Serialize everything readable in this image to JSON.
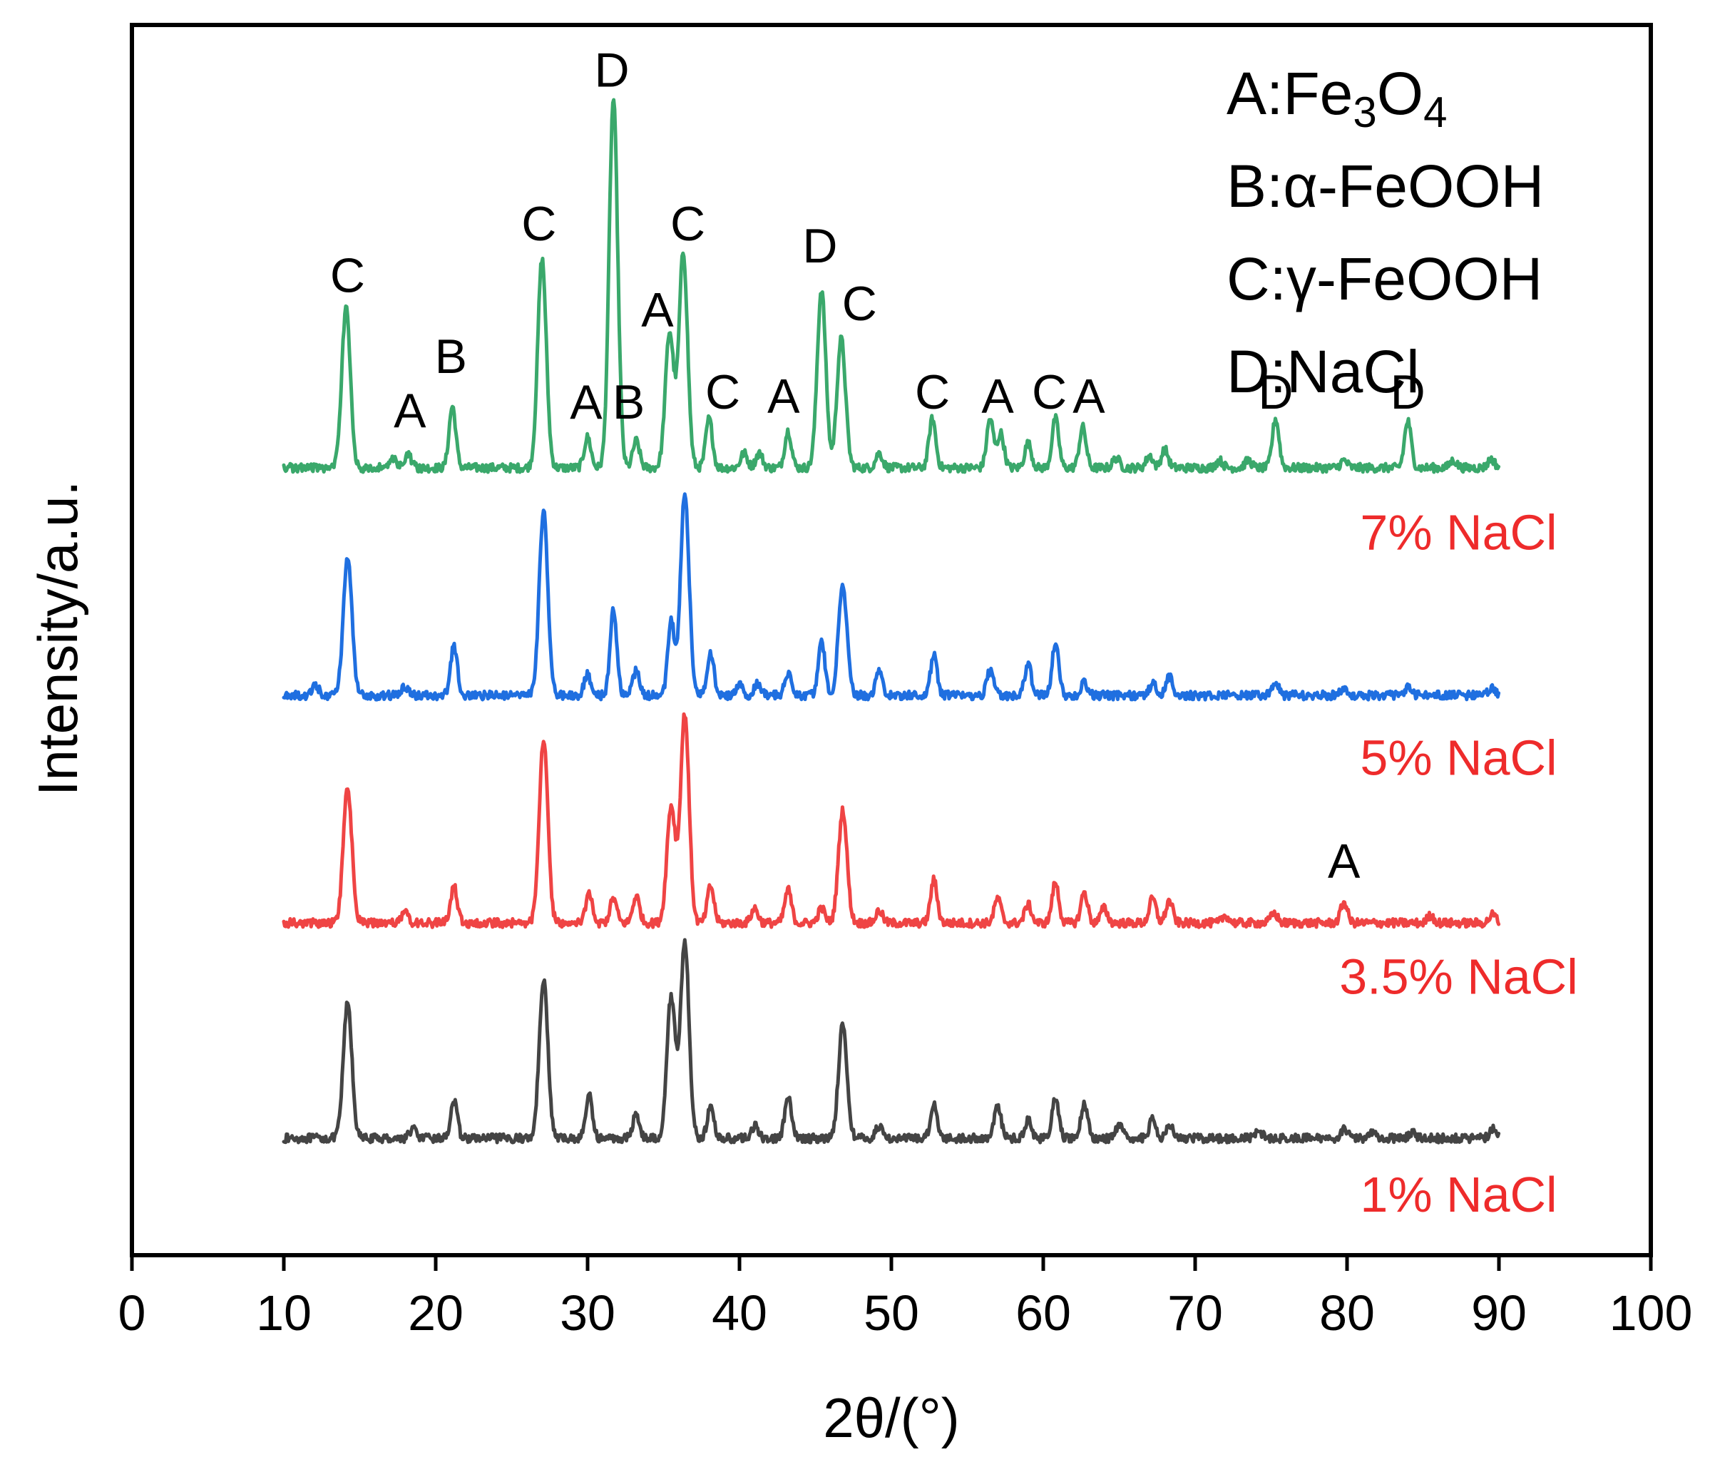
{
  "chart_data": {
    "type": "line",
    "title": "",
    "xlabel": "2θ/(°)",
    "ylabel": "Intensity/a.u.",
    "xlim": [
      0,
      100
    ],
    "ylim": [
      0,
      1000
    ],
    "x_ticks": [
      0,
      10,
      20,
      30,
      40,
      50,
      60,
      70,
      80,
      90,
      100
    ],
    "x_tick_labels": [
      "0",
      "10",
      "20",
      "30",
      "40",
      "50",
      "60",
      "70",
      "80",
      "90",
      "100"
    ],
    "y_ticks_visible": false,
    "x_range_data": [
      10,
      90
    ],
    "legend": {
      "position": "top-right",
      "entries": [
        {
          "code": "A",
          "sep": ":",
          "formula_parts": [
            [
              "Fe",
              false
            ],
            [
              "3",
              true
            ],
            [
              "O",
              false
            ],
            [
              "4",
              true
            ]
          ]
        },
        {
          "code": "B",
          "sep": ":",
          "text": "α-FeOOH"
        },
        {
          "code": "C",
          "sep": ":",
          "text": "γ-FeOOH"
        },
        {
          "code": "D",
          "sep": ":",
          "text": "NaCl"
        }
      ]
    },
    "series": [
      {
        "name": "1% NaCl",
        "color": "#444444",
        "baseline": 95,
        "label_pos": [
          85,
          50
        ],
        "peaks": [
          [
            14.2,
            110
          ],
          [
            18.5,
            8
          ],
          [
            21.2,
            30
          ],
          [
            27.1,
            130
          ],
          [
            30.1,
            35
          ],
          [
            33.2,
            20
          ],
          [
            35.5,
            115
          ],
          [
            36.4,
            160
          ],
          [
            38.1,
            25
          ],
          [
            41,
            10
          ],
          [
            43.2,
            33
          ],
          [
            46.8,
            92
          ],
          [
            49.2,
            10
          ],
          [
            52.8,
            28
          ],
          [
            57,
            27
          ],
          [
            59,
            15
          ],
          [
            60.8,
            32
          ],
          [
            62.7,
            28
          ],
          [
            65,
            10
          ],
          [
            67.2,
            15
          ],
          [
            68.3,
            12
          ],
          [
            74.2,
            6
          ],
          [
            79.8,
            8
          ],
          [
            81.6,
            6
          ],
          [
            84.3,
            5
          ],
          [
            89.6,
            8
          ]
        ]
      },
      {
        "name": "3.5% NaCl",
        "color": "#ef4444",
        "baseline": 270,
        "label_pos": [
          85,
          227
        ],
        "peaks": [
          [
            14.2,
            110
          ],
          [
            18,
            8
          ],
          [
            21.2,
            30
          ],
          [
            27.1,
            150
          ],
          [
            30.1,
            25
          ],
          [
            31.7,
            20
          ],
          [
            33.2,
            22
          ],
          [
            35.5,
            95
          ],
          [
            36.4,
            170
          ],
          [
            38.1,
            30
          ],
          [
            41,
            12
          ],
          [
            43.2,
            27
          ],
          [
            45.4,
            12
          ],
          [
            46.8,
            92
          ],
          [
            49.2,
            10
          ],
          [
            52.8,
            35
          ],
          [
            57,
            20
          ],
          [
            59,
            15
          ],
          [
            60.8,
            33
          ],
          [
            62.7,
            25
          ],
          [
            64,
            12
          ],
          [
            67.2,
            20
          ],
          [
            68.3,
            18
          ],
          [
            72,
            6
          ],
          [
            75.2,
            8
          ],
          [
            79.8,
            17
          ],
          [
            85.5,
            6
          ],
          [
            89.6,
            7
          ]
        ]
      },
      {
        "name": "5% NaCl",
        "color": "#1f6fe0",
        "baseline": 455,
        "label_pos": [
          85,
          405
        ],
        "peaks": [
          [
            12.1,
            8
          ],
          [
            14.2,
            112
          ],
          [
            18,
            7
          ],
          [
            21.2,
            40
          ],
          [
            27.1,
            150
          ],
          [
            30,
            17
          ],
          [
            31.7,
            70
          ],
          [
            33.2,
            20
          ],
          [
            35.5,
            60
          ],
          [
            36.4,
            165
          ],
          [
            38.1,
            35
          ],
          [
            40,
            10
          ],
          [
            41.2,
            10
          ],
          [
            43.2,
            18
          ],
          [
            45.4,
            45
          ],
          [
            46.8,
            90
          ],
          [
            49.2,
            20
          ],
          [
            52.8,
            32
          ],
          [
            56.5,
            20
          ],
          [
            59,
            25
          ],
          [
            60.8,
            42
          ],
          [
            62.7,
            10
          ],
          [
            67.2,
            10
          ],
          [
            68.3,
            15
          ],
          [
            75.3,
            10
          ],
          [
            79.8,
            6
          ],
          [
            84,
            7
          ],
          [
            89.5,
            6
          ]
        ]
      },
      {
        "name": "7% NaCl",
        "color": "#3aa86b",
        "baseline": 640,
        "label_pos": [
          85,
          588
        ],
        "peaks": [
          [
            14.1,
            130
          ],
          [
            17.2,
            8
          ],
          [
            18.2,
            10
          ],
          [
            21.1,
            50
          ],
          [
            27,
            170
          ],
          [
            30,
            25
          ],
          [
            31.7,
            300
          ],
          [
            33.2,
            22
          ],
          [
            35.4,
            110
          ],
          [
            36.3,
            175
          ],
          [
            38,
            40
          ],
          [
            40.3,
            12
          ],
          [
            41.3,
            12
          ],
          [
            43.2,
            30
          ],
          [
            45.4,
            145
          ],
          [
            46.7,
            105
          ],
          [
            49.2,
            12
          ],
          [
            52.7,
            40
          ],
          [
            56.5,
            40
          ],
          [
            57.2,
            28
          ],
          [
            59,
            20
          ],
          [
            60.8,
            40
          ],
          [
            62.6,
            33
          ],
          [
            64.8,
            8
          ],
          [
            67,
            10
          ],
          [
            68,
            15
          ],
          [
            71.6,
            6
          ],
          [
            73.5,
            6
          ],
          [
            75.3,
            40
          ],
          [
            79.8,
            6
          ],
          [
            84,
            38
          ],
          [
            87,
            6
          ],
          [
            89.5,
            7
          ]
        ]
      }
    ],
    "peak_labels": [
      {
        "text": "C",
        "x": 14.2,
        "y": 783
      },
      {
        "text": "A",
        "x": 18.3,
        "y": 673
      },
      {
        "text": "B",
        "x": 21.0,
        "y": 717
      },
      {
        "text": "C",
        "x": 26.8,
        "y": 825
      },
      {
        "text": "A",
        "x": 29.9,
        "y": 680
      },
      {
        "text": "B",
        "x": 32.7,
        "y": 680
      },
      {
        "text": "D",
        "x": 31.6,
        "y": 950
      },
      {
        "text": "A",
        "x": 34.6,
        "y": 755
      },
      {
        "text": "C",
        "x": 36.6,
        "y": 825
      },
      {
        "text": "C",
        "x": 38.9,
        "y": 688
      },
      {
        "text": "A",
        "x": 42.9,
        "y": 685
      },
      {
        "text": "D",
        "x": 45.3,
        "y": 807
      },
      {
        "text": "C",
        "x": 47.9,
        "y": 760
      },
      {
        "text": "C",
        "x": 52.7,
        "y": 688
      },
      {
        "text": "A",
        "x": 57.0,
        "y": 685
      },
      {
        "text": "C",
        "x": 60.4,
        "y": 688
      },
      {
        "text": "A",
        "x": 63.0,
        "y": 685
      },
      {
        "text": "D",
        "x": 75.3,
        "y": 688
      },
      {
        "text": "D",
        "x": 84.0,
        "y": 688
      },
      {
        "text": "A",
        "x": 79.8,
        "y": 307
      }
    ]
  }
}
